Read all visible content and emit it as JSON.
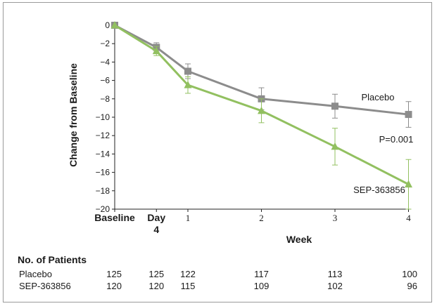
{
  "chart_data": {
    "type": "line",
    "ylabel": "Change from Baseline",
    "xlabel": "Week",
    "ylim": [
      -20,
      0
    ],
    "yticks": [
      0,
      -2,
      -4,
      -6,
      -8,
      -10,
      -12,
      -14,
      -16,
      -18,
      -20
    ],
    "yticklabels": [
      "0",
      "−2",
      "−4",
      "−6",
      "−8",
      "−10",
      "−12",
      "−14",
      "−16",
      "−18",
      "−20"
    ],
    "x_ticks": [
      {
        "label": "Baseline",
        "sub": "",
        "week": 0
      },
      {
        "label": "Day",
        "sub": "4",
        "week": 0.57
      },
      {
        "label": "1",
        "sub": "",
        "week": 1
      },
      {
        "label": "2",
        "sub": "",
        "week": 2
      },
      {
        "label": "3",
        "sub": "",
        "week": 3
      },
      {
        "label": "4",
        "sub": "",
        "week": 4
      }
    ],
    "series": [
      {
        "name": "Placebo",
        "color": "#8c8c8c",
        "marker": "square",
        "points": [
          {
            "week": 0,
            "y": 0,
            "err": 0
          },
          {
            "week": 0.57,
            "y": -2.4,
            "err": 0.5
          },
          {
            "week": 1,
            "y": -5.0,
            "err": 0.8
          },
          {
            "week": 2,
            "y": -8.0,
            "err": 1.2
          },
          {
            "week": 3,
            "y": -8.8,
            "err": 1.3
          },
          {
            "week": 4,
            "y": -9.7,
            "err": 1.4
          }
        ]
      },
      {
        "name": "SEP-363856",
        "color": "#92c060",
        "marker": "triangle",
        "points": [
          {
            "week": 0,
            "y": 0,
            "err": 0
          },
          {
            "week": 0.57,
            "y": -2.8,
            "err": 0.5
          },
          {
            "week": 1,
            "y": -6.5,
            "err": 0.9
          },
          {
            "week": 2,
            "y": -9.3,
            "err": 1.3
          },
          {
            "week": 3,
            "y": -13.2,
            "err": 2.0
          },
          {
            "week": 4,
            "y": -17.3,
            "err": 2.7
          }
        ]
      }
    ],
    "annotations": {
      "placebo_label": "Placebo",
      "p_value": "P=0.001",
      "drug_label": "SEP-363856"
    }
  },
  "patients_table": {
    "heading": "No. of Patients",
    "rows": [
      {
        "label": "Placebo",
        "counts": [
          "125",
          "125",
          "122",
          "117",
          "113",
          "100"
        ]
      },
      {
        "label": "SEP-363856",
        "counts": [
          "120",
          "120",
          "115",
          "109",
          "102",
          "96"
        ]
      }
    ]
  }
}
